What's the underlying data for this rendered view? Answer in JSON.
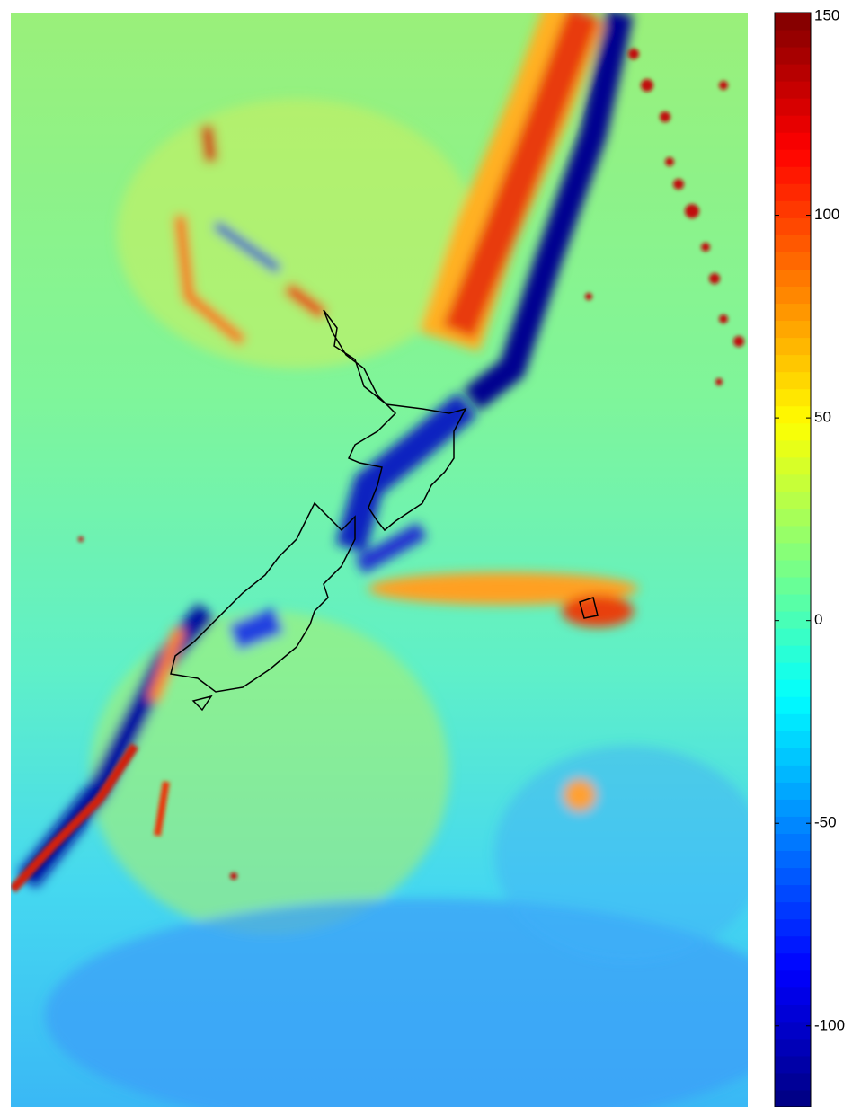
{
  "chart_data": {
    "type": "map",
    "colormap": "jet",
    "ylim": [
      -120,
      150
    ],
    "yticks": [
      150,
      100,
      50,
      0,
      -50,
      -100
    ]
  }
}
